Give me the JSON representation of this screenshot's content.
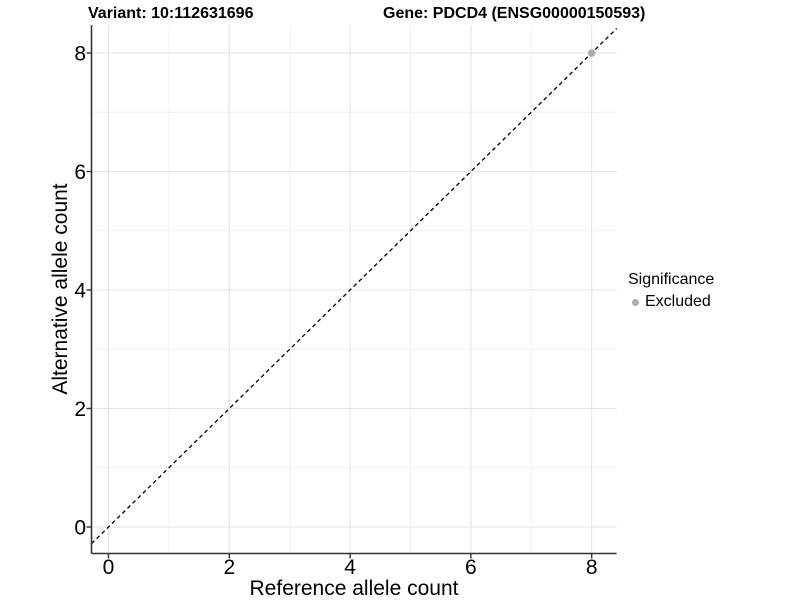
{
  "chart_data": {
    "type": "scatter",
    "title_left": "Variant: 10:112631696",
    "title_right": "Gene: PDCD4 (ENSG00000150593)",
    "xlabel": "Reference allele count",
    "ylabel": "Alternative allele count",
    "xlim": [
      -0.3,
      8.42
    ],
    "ylim": [
      -0.45,
      8.47
    ],
    "xticks": [
      0,
      2,
      4,
      6,
      8
    ],
    "yticks": [
      0,
      2,
      4,
      6,
      8
    ],
    "minor_xticks": [
      1,
      3,
      5,
      7
    ],
    "minor_yticks": [
      1,
      3,
      5,
      7
    ],
    "grid": true,
    "points": [
      {
        "x": 8,
        "y": 8,
        "series": "Excluded"
      }
    ],
    "reference_line": {
      "style": "dashed",
      "slope": 1,
      "intercept": 0,
      "color": "#000000"
    },
    "legend": {
      "title": "Significance",
      "position": "right",
      "items": [
        {
          "label": "Excluded",
          "color": "#ACACAC"
        }
      ]
    },
    "colors": {
      "point": "#ACACAC",
      "grid_major": "#E4E4E4",
      "grid_minor": "#F0F0F0",
      "axis": "#333333",
      "text": "#000000",
      "background": "#FFFFFF"
    }
  }
}
